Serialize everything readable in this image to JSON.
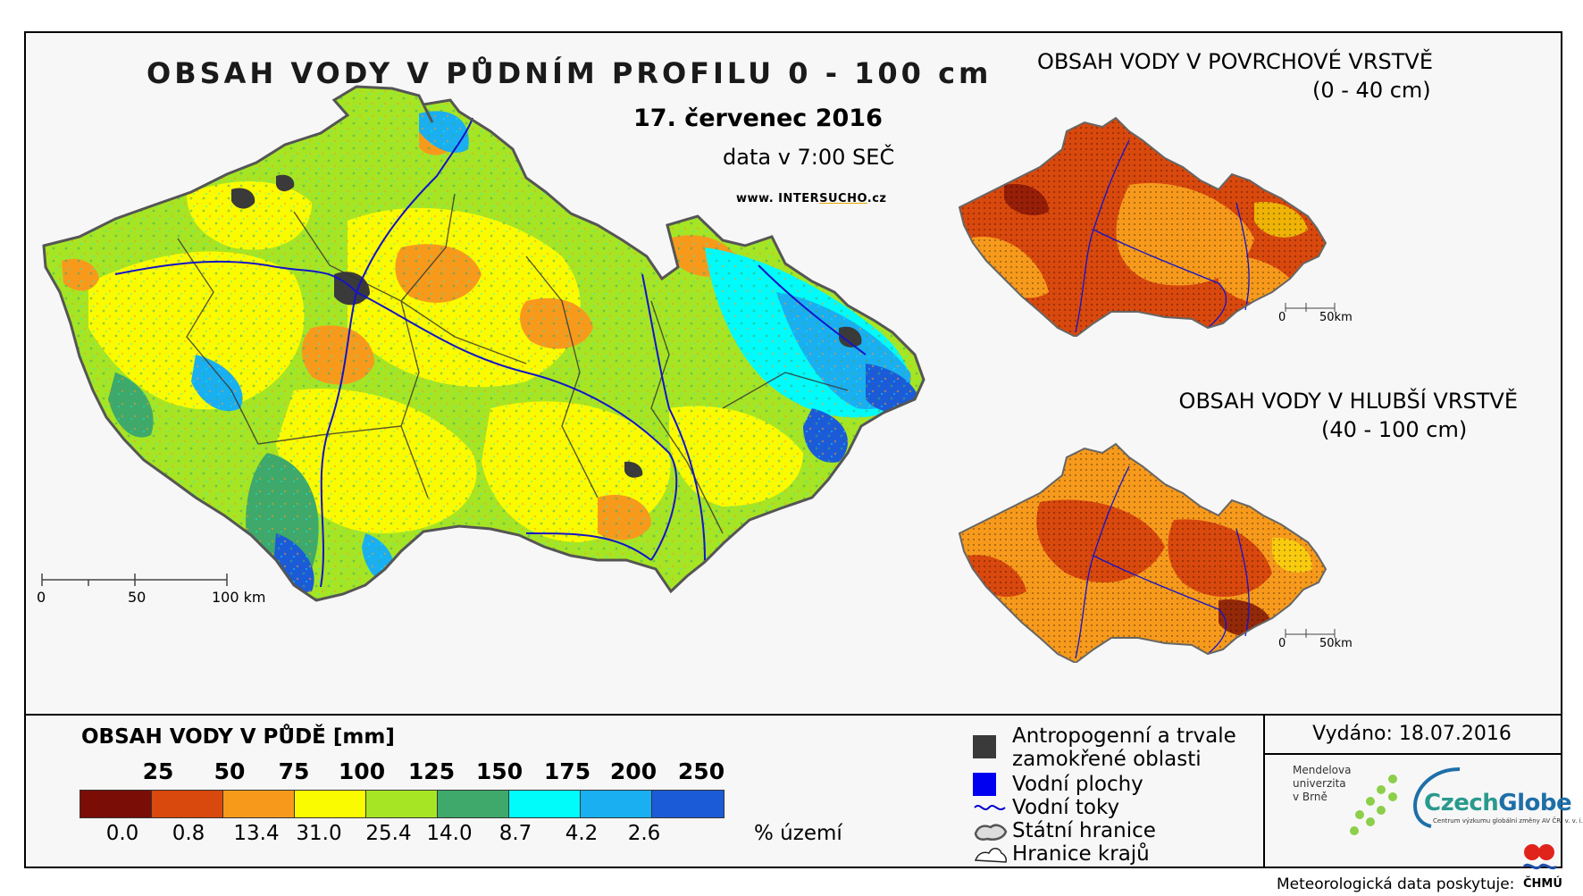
{
  "main": {
    "title": "OBSAH VODY V PŮDNÍM PROFILU 0 - 100 cm",
    "date": "17. červenec 2016",
    "data_time": "data v 7:00 SEČ",
    "web_prefix": "www. INTER",
    "web_mid": "SUCHO",
    "web_suffix": ".cz",
    "scale_labels": [
      "0",
      "50",
      "100 km"
    ]
  },
  "inset_top": {
    "title": "OBSAH VODY V POVRCHOVÉ VRSTVĚ",
    "subtitle": "(0 - 40 cm)",
    "scale_labels": [
      "0",
      "50km"
    ]
  },
  "inset_bottom": {
    "title": "OBSAH VODY V HLUBŠÍ VRSTVĚ",
    "subtitle": "(40 - 100 cm)",
    "scale_labels": [
      "0",
      "50km"
    ]
  },
  "legend": {
    "title": "OBSAH VODY V PŮDĚ [mm]",
    "thresholds": [
      "25",
      "50",
      "75",
      "100",
      "125",
      "150",
      "175",
      "200",
      "250"
    ],
    "colors": [
      "#7a0d05",
      "#d9480d",
      "#f79a1c",
      "#fbfb00",
      "#a6e524",
      "#3ea96a",
      "#00fbfb",
      "#1aaff0",
      "#1b5bd8"
    ],
    "percent": [
      "0.0",
      "0.8",
      "13.4",
      "31.0",
      "25.4",
      "14.0",
      "8.7",
      "4.2",
      "2.6"
    ],
    "percent_unit": "% území"
  },
  "symbols": {
    "anthro_line1": "Antropogenní a trvale",
    "anthro_line2": "zamokřené oblasti",
    "water": "Vodní plochy",
    "rivers": "Vodní toky",
    "border": "Státní hranice",
    "regions": "Hranice krajů",
    "colors": {
      "anthro": "#3a3a3a",
      "water": "#0000f0",
      "rivers": "#0000cc"
    }
  },
  "footer": {
    "issued": "Vydáno: 18.07.2016",
    "mendel_l1": "Mendelova",
    "mendel_l2": "univerzita",
    "mendel_l3": "v Brně",
    "czechglobe_a": "Czech",
    "czechglobe_b": "Globe",
    "czechglobe_sub": "Centrum výzkumu globální změny AV ČR, v. v. i.",
    "meteo": "Meteorologická data poskytuje:",
    "chmu": "ČHMÚ"
  }
}
